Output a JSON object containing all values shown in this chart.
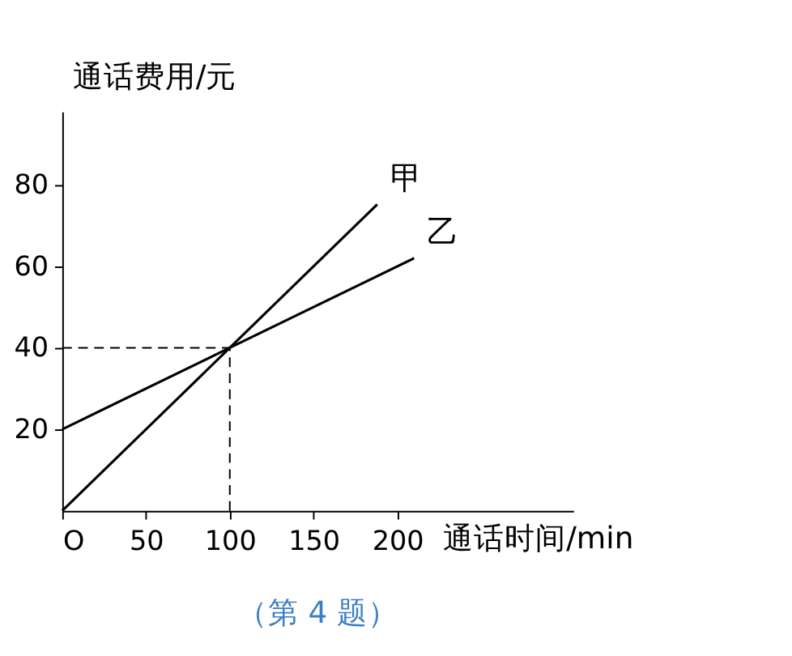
{
  "chart_data": {
    "type": "line",
    "xlabel": "通话时间/min",
    "ylabel": "通话费用/元",
    "series": [
      {
        "name": "甲",
        "color": "#000000",
        "x": [
          0,
          100,
          188
        ],
        "values": [
          0,
          40,
          75.2
        ]
      },
      {
        "name": "乙",
        "color": "#000000",
        "x": [
          0,
          100,
          210
        ],
        "values": [
          20,
          40,
          62
        ]
      }
    ],
    "xlim": [
      0,
      305
    ],
    "ylim": [
      0,
      98
    ],
    "xticks": [
      {
        "value": 0,
        "label": "O"
      },
      50,
      100,
      150,
      200
    ],
    "yticks": [
      20,
      40,
      60,
      80
    ],
    "ref_lines": [
      {
        "axis": "x",
        "value": 100,
        "label": null,
        "line_style": "dashed"
      },
      {
        "axis": "y",
        "value": 40,
        "label": null,
        "line_style": "dashed"
      }
    ],
    "annotations": [
      "（第 4 题）"
    ],
    "grid": false,
    "legend": false,
    "marker": "none",
    "line_style": "solid"
  }
}
